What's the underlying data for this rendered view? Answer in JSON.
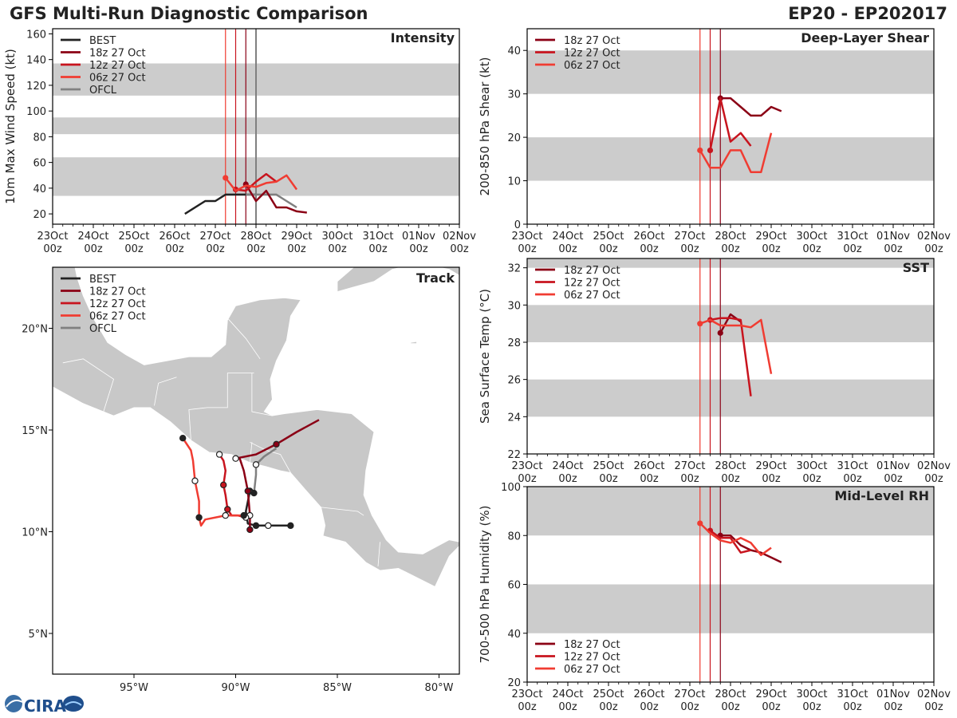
{
  "page": {
    "title": "GFS Multi-Run Diagnostic Comparison",
    "storm": "EP20 - EP202017",
    "logo_text": "CIRA"
  },
  "colors": {
    "BEST": "#222222",
    "R18": "#8b0015",
    "R12": "#c8141e",
    "R06": "#f03c32",
    "OFCL": "#808080",
    "band": "#cccccc",
    "land": "#c8c8c8"
  },
  "time_axis": {
    "days": [
      "23Oct",
      "24Oct",
      "25Oct",
      "26Oct",
      "27Oct",
      "28Oct",
      "29Oct",
      "30Oct",
      "31Oct",
      "01Nov",
      "02Nov"
    ],
    "hour_label": "00z",
    "vlines": [
      {
        "t": 4.25,
        "color": "R06"
      },
      {
        "t": 4.5,
        "color": "R12"
      },
      {
        "t": 4.75,
        "color": "R18"
      }
    ]
  },
  "chart_data": [
    {
      "id": "intensity",
      "type": "line",
      "title": "Intensity",
      "ylabel": "10m Max Wind Speed (kt)",
      "ylim": [
        12,
        164
      ],
      "yticks": [
        20,
        40,
        60,
        80,
        100,
        120,
        140,
        160
      ],
      "bands": [
        [
          34,
          64
        ],
        [
          82,
          95
        ],
        [
          112,
          137
        ]
      ],
      "extra_vline": {
        "t": 5.0,
        "color": "OFCL"
      },
      "legend": [
        {
          "label": "BEST",
          "color": "BEST"
        },
        {
          "label": "18z 27 Oct",
          "color": "R18"
        },
        {
          "label": "12z 27 Oct",
          "color": "R12"
        },
        {
          "label": "06z 27 Oct",
          "color": "R06"
        },
        {
          "label": "OFCL",
          "color": "OFCL"
        }
      ],
      "series": [
        {
          "name": "BEST",
          "color": "BEST",
          "x": [
            3.25,
            3.75,
            4.0,
            4.25,
            4.5,
            4.75,
            5.0
          ],
          "y": [
            20,
            30,
            30,
            35,
            35,
            35,
            35
          ]
        },
        {
          "name": "OFCL",
          "color": "OFCL",
          "x": [
            4.75,
            5.0,
            5.25,
            5.5,
            5.75,
            6.0
          ],
          "y": [
            35,
            35,
            35,
            35,
            30,
            25
          ]
        },
        {
          "name": "18z 27 Oct",
          "color": "R18",
          "marker": 0,
          "x": [
            4.75,
            5.0,
            5.25,
            5.5,
            5.75,
            6.0,
            6.25
          ],
          "y": [
            43,
            30,
            38,
            25,
            25,
            22,
            21
          ]
        },
        {
          "name": "12z 27 Oct",
          "color": "R12",
          "marker": 0,
          "x": [
            4.5,
            4.75,
            5.0,
            5.25,
            5.5
          ],
          "y": [
            39,
            38,
            45,
            51,
            45
          ]
        },
        {
          "name": "06z 27 Oct",
          "color": "R06",
          "marker": 0,
          "x": [
            4.25,
            4.5,
            4.75,
            5.0,
            5.25,
            5.5,
            5.75,
            6.0
          ],
          "y": [
            48,
            38,
            42,
            41,
            44,
            45,
            50,
            39
          ]
        }
      ]
    },
    {
      "id": "shear",
      "type": "line",
      "title": "Deep-Layer Shear",
      "ylabel": "200-850 hPa Shear (kt)",
      "ylim": [
        0,
        45
      ],
      "yticks": [
        0,
        10,
        20,
        30,
        40
      ],
      "bands": [
        [
          10,
          20
        ],
        [
          30,
          40
        ]
      ],
      "legend": [
        {
          "label": "18z 27 Oct",
          "color": "R18"
        },
        {
          "label": "12z 27 Oct",
          "color": "R12"
        },
        {
          "label": "06z 27 Oct",
          "color": "R06"
        }
      ],
      "series": [
        {
          "name": "18z 27 Oct",
          "color": "R18",
          "marker": 0,
          "x": [
            4.75,
            5.0,
            5.25,
            5.5,
            5.75,
            6.0,
            6.25
          ],
          "y": [
            29,
            29,
            27,
            25,
            25,
            27,
            26
          ]
        },
        {
          "name": "12z 27 Oct",
          "color": "R12",
          "marker": 0,
          "x": [
            4.5,
            4.75,
            5.0,
            5.25,
            5.5
          ],
          "y": [
            17,
            29,
            19,
            21,
            18
          ]
        },
        {
          "name": "06z 27 Oct",
          "color": "R06",
          "marker": 0,
          "x": [
            4.25,
            4.5,
            4.75,
            5.0,
            5.25,
            5.5,
            5.75,
            6.0
          ],
          "y": [
            17,
            13,
            13,
            17,
            17,
            12,
            12,
            21
          ]
        }
      ]
    },
    {
      "id": "sst",
      "type": "line",
      "title": "SST",
      "ylabel": "Sea Surface Temp (°C)",
      "ylim": [
        22,
        32.5
      ],
      "yticks": [
        22,
        24,
        26,
        28,
        30,
        32
      ],
      "bands": [
        [
          24,
          26
        ],
        [
          28,
          30
        ],
        [
          32,
          32.5
        ]
      ],
      "legend": [
        {
          "label": "18z 27 Oct",
          "color": "R18"
        },
        {
          "label": "12z 27 Oct",
          "color": "R12"
        },
        {
          "label": "06z 27 Oct",
          "color": "R06"
        }
      ],
      "series": [
        {
          "name": "18z 27 Oct",
          "color": "R18",
          "marker": 0,
          "x": [
            4.75,
            5.0,
            5.25
          ],
          "y": [
            28.5,
            29.5,
            29.1
          ]
        },
        {
          "name": "12z 27 Oct",
          "color": "R12",
          "marker": 0,
          "x": [
            4.5,
            4.75,
            5.0,
            5.25,
            5.5
          ],
          "y": [
            29.2,
            29.3,
            29.3,
            29.2,
            25.1
          ]
        },
        {
          "name": "06z 27 Oct",
          "color": "R06",
          "marker": 0,
          "x": [
            4.25,
            4.5,
            4.75,
            5.0,
            5.25,
            5.5,
            5.75,
            6.0
          ],
          "y": [
            29.0,
            29.2,
            28.9,
            28.9,
            28.9,
            28.8,
            29.2,
            26.3
          ]
        }
      ]
    },
    {
      "id": "rh",
      "type": "line",
      "title": "Mid-Level RH",
      "ylabel": "700-500 hPa Humidity (%)",
      "ylim": [
        20,
        100
      ],
      "yticks": [
        20,
        40,
        60,
        80,
        100
      ],
      "bands": [
        [
          40,
          60
        ],
        [
          80,
          100
        ]
      ],
      "legend": [
        {
          "label": "18z 27 Oct",
          "color": "R18"
        },
        {
          "label": "12z 27 Oct",
          "color": "R12"
        },
        {
          "label": "06z 27 Oct",
          "color": "R06"
        }
      ],
      "series": [
        {
          "name": "18z 27 Oct",
          "color": "R18",
          "marker": 0,
          "x": [
            4.75,
            5.0,
            5.25,
            5.5,
            5.75,
            6.0,
            6.25
          ],
          "y": [
            80,
            80,
            76,
            74,
            73,
            71,
            69
          ]
        },
        {
          "name": "12z 27 Oct",
          "color": "R12",
          "marker": 0,
          "x": [
            4.5,
            4.75,
            5.0,
            5.25,
            5.5
          ],
          "y": [
            82,
            79,
            79,
            73,
            74
          ]
        },
        {
          "name": "06z 27 Oct",
          "color": "R06",
          "marker": 0,
          "x": [
            4.25,
            4.5,
            4.75,
            5.0,
            5.25,
            5.5,
            5.75,
            6.0
          ],
          "y": [
            85,
            81,
            78,
            77,
            79,
            77,
            72,
            75
          ]
        }
      ]
    },
    {
      "id": "track",
      "type": "scatter",
      "title": "Track",
      "lon_range": [
        -99,
        -79
      ],
      "lat_range": [
        3,
        23
      ],
      "xticks": [
        {
          "v": -95,
          "label": "95°W"
        },
        {
          "v": -90,
          "label": "90°W"
        },
        {
          "v": -85,
          "label": "85°W"
        },
        {
          "v": -80,
          "label": "80°W"
        }
      ],
      "yticks": [
        {
          "v": 5,
          "label": "5°N"
        },
        {
          "v": 10,
          "label": "10°N"
        },
        {
          "v": 15,
          "label": "15°N"
        },
        {
          "v": 20,
          "label": "20°N"
        }
      ],
      "legend": [
        {
          "label": "BEST",
          "color": "BEST"
        },
        {
          "label": "18z 27 Oct",
          "color": "R18"
        },
        {
          "label": "12z 27 Oct",
          "color": "R12"
        },
        {
          "label": "06z 27 Oct",
          "color": "R06"
        },
        {
          "label": "OFCL",
          "color": "OFCL"
        }
      ],
      "series": [
        {
          "name": "BEST",
          "color": "BEST",
          "lon": [
            -87.3,
            -88.4,
            -89.0,
            -89.4,
            -89.5,
            -89.3
          ],
          "lat": [
            10.3,
            10.3,
            10.3,
            10.4,
            11.0,
            12.0
          ],
          "markers": [
            {
              "i": 0,
              "fill": true
            },
            {
              "i": 1,
              "fill": false
            },
            {
              "i": 2,
              "fill": true
            },
            {
              "i": 5,
              "fill": true
            }
          ]
        },
        {
          "name": "OFCL",
          "color": "OFCL",
          "lon": [
            -89.3,
            -89.1,
            -89.0,
            -89.0,
            -88.6,
            -88.0
          ],
          "lat": [
            12.0,
            11.9,
            12.8,
            13.3,
            13.7,
            14.1
          ],
          "markers": [
            {
              "i": 1,
              "fill": true
            },
            {
              "i": 3,
              "fill": false
            }
          ]
        },
        {
          "name": "18z 27 Oct",
          "color": "R18",
          "lon": [
            -89.3,
            -89.3,
            -89.4,
            -89.6,
            -89.8,
            -90.0,
            -89.0,
            -88.0,
            -87.0,
            -85.9
          ],
          "lat": [
            10.1,
            10.8,
            12.0,
            13.0,
            13.6,
            13.6,
            13.8,
            14.3,
            14.9,
            15.5
          ],
          "markers": [
            {
              "i": 0,
              "fill": true
            },
            {
              "i": 1,
              "fill": false
            },
            {
              "i": 2,
              "fill": true
            },
            {
              "i": 5,
              "fill": false
            },
            {
              "i": 7,
              "fill": true
            }
          ]
        },
        {
          "name": "12z 27 Oct",
          "color": "R12",
          "lon": [
            -89.5,
            -89.9,
            -90.2,
            -90.4,
            -90.5,
            -90.6,
            -90.5,
            -90.6,
            -90.8
          ],
          "lat": [
            10.7,
            10.8,
            10.8,
            11.1,
            11.8,
            12.3,
            13.0,
            13.5,
            13.8
          ],
          "markers": [
            {
              "i": 0,
              "fill": false
            },
            {
              "i": 3,
              "fill": true
            },
            {
              "i": 5,
              "fill": true
            },
            {
              "i": 8,
              "fill": false
            }
          ]
        },
        {
          "name": "06z 27 Oct",
          "color": "R06",
          "lon": [
            -89.6,
            -90.5,
            -91.5,
            -91.7,
            -91.8,
            -91.8,
            -92.0,
            -92.1,
            -92.2,
            -92.6
          ],
          "lat": [
            10.8,
            10.8,
            10.6,
            10.3,
            10.7,
            11.5,
            12.5,
            13.5,
            14.0,
            14.6
          ],
          "markers": [
            {
              "i": 0,
              "fill": true
            },
            {
              "i": 1,
              "fill": false
            },
            {
              "i": 4,
              "fill": true
            },
            {
              "i": 6,
              "fill": false
            },
            {
              "i": 9,
              "fill": true
            }
          ]
        }
      ]
    }
  ]
}
